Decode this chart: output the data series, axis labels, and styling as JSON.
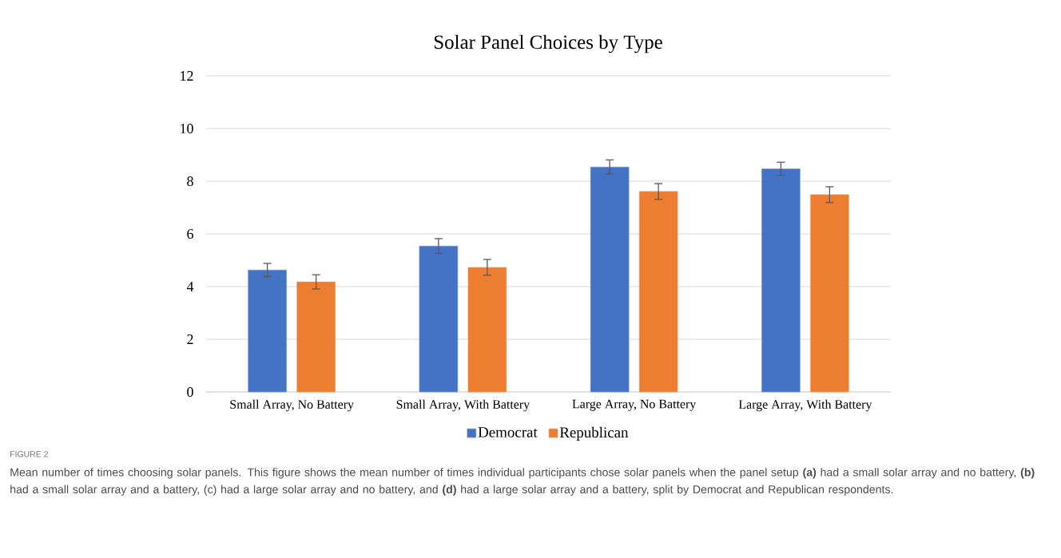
{
  "chart_data": {
    "type": "bar",
    "title": "Solar Panel Choices by Type",
    "categories": [
      "Small Array, No Battery",
      "Small Array, With Battery",
      "Large Array, No Battery",
      "Large Array, With Battery"
    ],
    "series": [
      {
        "name": "Democrat",
        "color": "#4472c4",
        "values": [
          4.63,
          5.54,
          8.54,
          8.47
        ],
        "errors": [
          0.25,
          0.28,
          0.27,
          0.25
        ]
      },
      {
        "name": "Republican",
        "color": "#ed7d31",
        "values": [
          4.18,
          4.73,
          7.61,
          7.49
        ],
        "errors": [
          0.27,
          0.3,
          0.3,
          0.3
        ]
      }
    ],
    "ylim": [
      0,
      12
    ],
    "yticks": [
      0,
      2,
      4,
      6,
      8,
      10,
      12
    ],
    "grid": "y",
    "legend": "bottom",
    "annotations": [
      "FIGURE 2",
      "Mean number of times choosing solar panels. This figure shows the mean number of times individual participants chose solar panels when the panel setup **(a)** had a small solar array and no battery, **(b)** had a small solar array and a battery, (c) had a large solar array and no battery, and **(d)** had a large solar array and a battery, split by Democrat and Republican respondents."
    ]
  }
}
